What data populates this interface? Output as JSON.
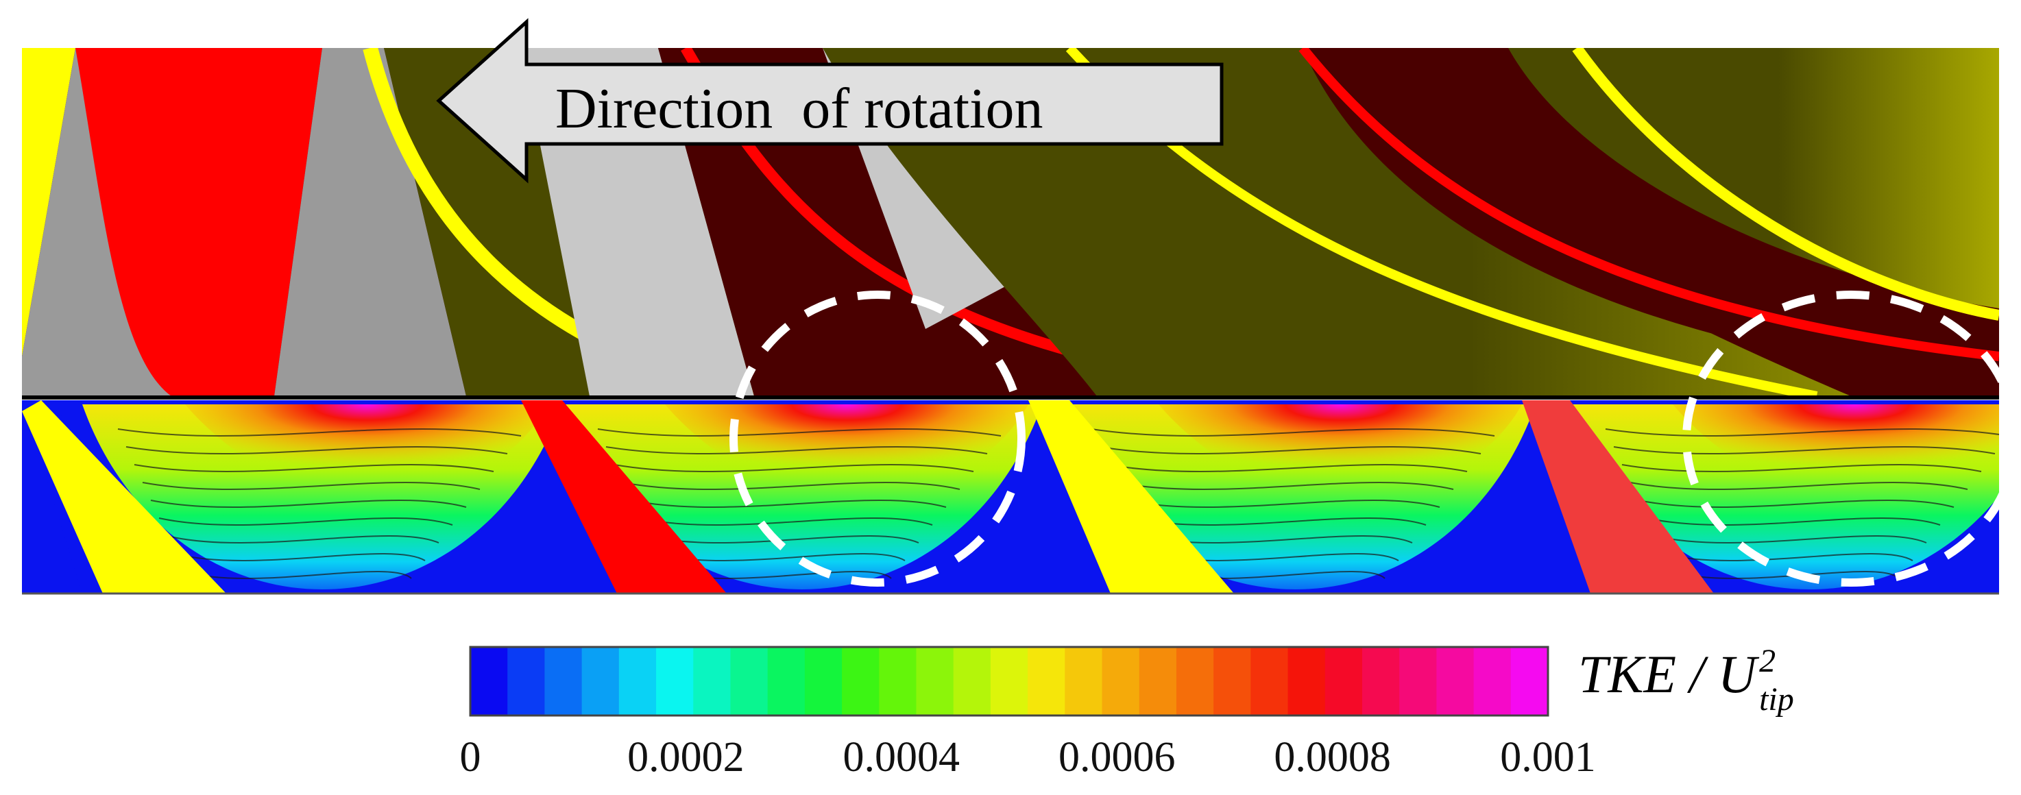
{
  "arrow": {
    "label": "Direction  of rotation"
  },
  "colorbar": {
    "label_main": "TKE / U",
    "label_sup": "2",
    "label_sub": "tip",
    "range": [
      0,
      0.001
    ],
    "ticks": [
      "0",
      "0.0002",
      "0.0004",
      "0.0006",
      "0.0008",
      "0.001"
    ],
    "colors": [
      "#0a0af2",
      "#0a3cf5",
      "#0a6ef5",
      "#0aa0f5",
      "#0ad2f5",
      "#0af5f0",
      "#0af5c0",
      "#0af590",
      "#0af560",
      "#14f53c",
      "#3cf514",
      "#64f50a",
      "#8cf50a",
      "#b4f50a",
      "#dcf50a",
      "#f5e60a",
      "#f5c80a",
      "#f5aa0a",
      "#f58c0a",
      "#f56e0a",
      "#f5500a",
      "#f5320a",
      "#f5140a",
      "#f50a28",
      "#f50a50",
      "#f50a78",
      "#f50aa0",
      "#f50ac8",
      "#f50af0"
    ]
  },
  "colors": {
    "red": "#ff0000",
    "yellow": "#ffff00",
    "olive": "#4a4a00",
    "maroon": "#4a0000",
    "gray": "#9a9a9a",
    "silver": "#c8c8c8",
    "blue": "#0a14f0",
    "highlight_circle": "#ffffff"
  }
}
